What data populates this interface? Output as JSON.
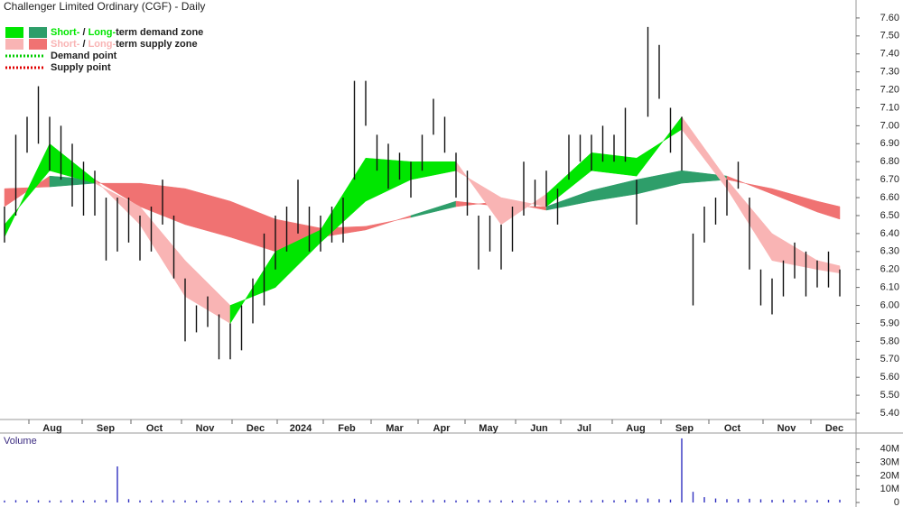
{
  "chart_data": {
    "type": "range-bar",
    "title": "Challenger Limited Ordinary (CGF) - Daily",
    "legend": [
      {
        "parts": [
          "Short-",
          " / ",
          "Long-",
          "term demand zone"
        ],
        "colors": [
          "#00e600",
          "#2e9e6a"
        ]
      },
      {
        "parts": [
          "Short-",
          " / ",
          "Long-",
          "term supply zone"
        ],
        "colors": [
          "#f9b4b4",
          "#f07272"
        ]
      },
      {
        "parts": [
          "Demand point"
        ],
        "colors": [
          "#00cc00"
        ],
        "style": "dotted"
      },
      {
        "parts": [
          "Supply point"
        ],
        "colors": [
          "#e00000"
        ],
        "style": "dotted"
      }
    ],
    "low": [
      6.35,
      6.5,
      6.85,
      6.9,
      6.75,
      6.7,
      6.55,
      6.5,
      6.5,
      6.25,
      6.3,
      6.35,
      6.25,
      6.3,
      6.45,
      6.15,
      5.8,
      5.85,
      5.88,
      5.7,
      5.7,
      5.75,
      5.9,
      6.0,
      6.2,
      6.3,
      6.4,
      6.3,
      6.3,
      6.35,
      6.35,
      6.7,
      7.0,
      6.75,
      6.65,
      6.7,
      6.6,
      6.75,
      6.95,
      6.85,
      6.6,
      6.5,
      6.2,
      6.3,
      6.2,
      6.3,
      6.5,
      6.55,
      6.55,
      6.45,
      6.7,
      6.8,
      6.75,
      6.8,
      6.8,
      6.8,
      6.45,
      7.05,
      7.15,
      6.85,
      6.75,
      6.0,
      6.35,
      6.45,
      6.5,
      6.65,
      6.2,
      6.0,
      5.95,
      6.05,
      6.15,
      6.05,
      6.1,
      6.1,
      6.05
    ],
    "high": [
      6.55,
      6.95,
      7.05,
      7.22,
      7.05,
      7.0,
      6.9,
      6.8,
      6.75,
      6.6,
      6.6,
      6.6,
      6.5,
      6.55,
      6.7,
      6.5,
      6.15,
      6.0,
      6.05,
      5.95,
      5.9,
      6.0,
      6.15,
      6.4,
      6.5,
      6.55,
      6.7,
      6.55,
      6.5,
      6.55,
      6.6,
      7.25,
      7.25,
      6.95,
      6.9,
      6.85,
      6.8,
      6.95,
      7.15,
      7.05,
      6.85,
      6.75,
      6.5,
      6.5,
      6.45,
      6.55,
      6.8,
      6.7,
      6.75,
      6.65,
      6.95,
      6.95,
      6.95,
      7.0,
      6.95,
      7.1,
      6.7,
      7.55,
      7.45,
      7.1,
      7.05,
      6.4,
      6.55,
      6.6,
      6.7,
      6.8,
      6.6,
      6.2,
      6.15,
      6.25,
      6.35,
      6.3,
      6.25,
      6.3,
      6.2
    ],
    "zones": {
      "x": [
        0,
        4,
        8,
        12,
        16,
        20,
        24,
        28,
        32,
        36,
        40,
        44,
        48,
        52,
        56,
        60,
        64,
        68,
        72,
        74
      ],
      "short_fast": [
        6.38,
        6.9,
        6.7,
        6.45,
        6.05,
        5.9,
        6.3,
        6.42,
        6.82,
        6.8,
        6.8,
        6.45,
        6.62,
        6.85,
        6.82,
        6.98,
        6.65,
        6.25,
        6.2,
        6.18
      ],
      "short_slow": [
        6.45,
        6.75,
        6.68,
        6.55,
        6.25,
        6.0,
        6.1,
        6.35,
        6.58,
        6.7,
        6.75,
        6.6,
        6.55,
        6.75,
        6.72,
        7.05,
        6.7,
        6.4,
        6.25,
        6.22
      ],
      "long_fast": [
        6.55,
        6.72,
        6.7,
        6.55,
        6.45,
        6.38,
        6.3,
        6.38,
        6.42,
        6.5,
        6.58,
        6.55,
        6.55,
        6.64,
        6.7,
        6.75,
        6.72,
        6.62,
        6.52,
        6.48
      ],
      "long_slow": [
        6.65,
        6.66,
        6.68,
        6.68,
        6.65,
        6.58,
        6.48,
        6.43,
        6.44,
        6.49,
        6.55,
        6.58,
        6.53,
        6.58,
        6.62,
        6.68,
        6.7,
        6.65,
        6.58,
        6.55
      ]
    },
    "xlim": [
      -0.4,
      75.44
    ],
    "xticks": [
      {
        "value": 4.24,
        "label": "Aug"
      },
      {
        "value": 8.96,
        "label": "Sep"
      },
      {
        "value": 13.28,
        "label": "Oct"
      },
      {
        "value": 17.76,
        "label": "Nov"
      },
      {
        "value": 22.24,
        "label": "Dec"
      },
      {
        "value": 26.24,
        "label": "2024"
      },
      {
        "value": 30.32,
        "label": "Feb"
      },
      {
        "value": 34.56,
        "label": "Mar"
      },
      {
        "value": 38.72,
        "label": "Apr"
      },
      {
        "value": 42.88,
        "label": "May"
      },
      {
        "value": 47.36,
        "label": "Jun"
      },
      {
        "value": 51.36,
        "label": "Jul"
      },
      {
        "value": 55.92,
        "label": "Aug"
      },
      {
        "value": 60.24,
        "label": "Sep"
      },
      {
        "value": 64.48,
        "label": "Oct"
      },
      {
        "value": 69.28,
        "label": "Nov"
      },
      {
        "value": 73.52,
        "label": "Dec"
      }
    ],
    "ylim": [
      5.365,
      7.7
    ],
    "yticks": [
      {
        "value": 5.4,
        "label": "5.40"
      },
      {
        "value": 5.5,
        "label": "5.50"
      },
      {
        "value": 5.6,
        "label": "5.60"
      },
      {
        "value": 5.7,
        "label": "5.70"
      },
      {
        "value": 5.8,
        "label": "5.80"
      },
      {
        "value": 5.9,
        "label": "5.90"
      },
      {
        "value": 6.0,
        "label": "6.00"
      },
      {
        "value": 6.1,
        "label": "6.10"
      },
      {
        "value": 6.2,
        "label": "6.20"
      },
      {
        "value": 6.3,
        "label": "6.30"
      },
      {
        "value": 6.4,
        "label": "6.40"
      },
      {
        "value": 6.5,
        "label": "6.50"
      },
      {
        "value": 6.6,
        "label": "6.60"
      },
      {
        "value": 6.7,
        "label": "6.70"
      },
      {
        "value": 6.8,
        "label": "6.80"
      },
      {
        "value": 6.9,
        "label": "6.90"
      },
      {
        "value": 7.0,
        "label": "7.00"
      },
      {
        "value": 7.1,
        "label": "7.10"
      },
      {
        "value": 7.2,
        "label": "7.20"
      },
      {
        "value": 7.3,
        "label": "7.30"
      },
      {
        "value": 7.4,
        "label": "7.40"
      },
      {
        "value": 7.5,
        "label": "7.50"
      },
      {
        "value": 7.6,
        "label": "7.60"
      }
    ],
    "volume": {
      "label": "Volume",
      "color": "#3030c0",
      "values": [
        1500000,
        1800000,
        1600000,
        1700000,
        1500000,
        1600000,
        1900000,
        1500000,
        1700000,
        2000000,
        27000000,
        2500000,
        1600000,
        1500000,
        1800000,
        1700000,
        1600000,
        1500000,
        1400000,
        1600000,
        1500000,
        1300000,
        1500000,
        1700000,
        1600000,
        1500000,
        1800000,
        1600000,
        1500000,
        1700000,
        1900000,
        2800000,
        2200000,
        1800000,
        1600000,
        1700000,
        1500000,
        1800000,
        2100000,
        1900000,
        1600000,
        1800000,
        2000000,
        1700000,
        1600000,
        1500000,
        1700000,
        1600000,
        1800000,
        1500000,
        1700000,
        1600000,
        1800000,
        1900000,
        1700000,
        2000000,
        2400000,
        3000000,
        2500000,
        2200000,
        48000000,
        8000000,
        4000000,
        3000000,
        2500000,
        2600000,
        2800000,
        2400000,
        2000000,
        2200000,
        2000000,
        1900000,
        1800000,
        2000000,
        2100000
      ],
      "ylim": [
        0,
        50000000
      ],
      "yticks": [
        0,
        {
          "value": 10000000,
          "label": "10M"
        },
        {
          "value": 20000000,
          "label": "20M"
        },
        {
          "value": 30000000,
          "label": "30M"
        },
        {
          "value": 40000000,
          "label": "40M"
        }
      ]
    }
  }
}
